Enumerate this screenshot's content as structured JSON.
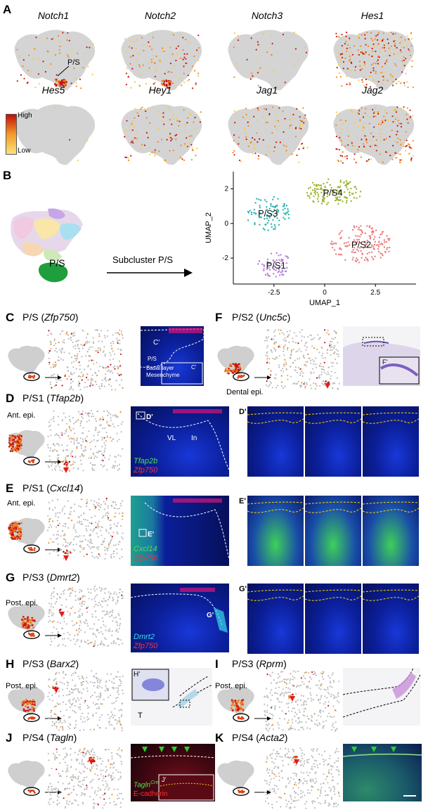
{
  "panelA": {
    "letter": "A",
    "genes": [
      "Notch1",
      "Notch2",
      "Notch3",
      "Hes1",
      "Hes5",
      "Hey1",
      "Jag1",
      "Jag2"
    ],
    "ps_label": "P/S",
    "legend_high": "High",
    "legend_low": "Low"
  },
  "panelB": {
    "letter": "B",
    "ps_label": "P/S",
    "arrow_label": "Subcluster P/S",
    "chart_data": {
      "type": "scatter",
      "xlabel": "UMAP_1",
      "ylabel": "UMAP_2",
      "xticks": [
        "-2.5",
        "0",
        "2.5"
      ],
      "yticks": [
        "2",
        "0",
        "-2"
      ],
      "xlim": [
        -4.5,
        4.5
      ],
      "ylim": [
        -3.5,
        3.0
      ],
      "clusters": [
        {
          "name": "P/S1",
          "color": "#b57ee0",
          "center": [
            -2.4,
            -2.4
          ]
        },
        {
          "name": "P/S2",
          "color": "#ef7a7a",
          "center": [
            1.8,
            -1.2
          ]
        },
        {
          "name": "P/S3",
          "color": "#2bb3b3",
          "center": [
            -2.8,
            0.6
          ]
        },
        {
          "name": "P/S4",
          "color": "#99b52d",
          "center": [
            0.4,
            1.8
          ]
        }
      ]
    }
  },
  "panelC": {
    "letter": "C",
    "title_pre": "P/S (",
    "gene": "Zfp750",
    "title_post": ")",
    "inset_label": "C'",
    "ps": "P/S",
    "basal": "Basal layer",
    "mes": "Mesenchyme"
  },
  "panelD": {
    "letter": "D",
    "title_pre": "P/S1 (",
    "gene": "Tfap2b",
    "title_post": ")",
    "ant": "Ant. epi.",
    "inset": "D'",
    "vl": "VL",
    "ln": "In",
    "stain1": "Tfap2b",
    "stain2": "Zfp750",
    "zoom": "D'"
  },
  "panelE": {
    "letter": "E",
    "title_pre": "P/S1 (",
    "gene": "Cxcl14",
    "title_post": ")",
    "ant": "Ant. epi.",
    "inset": "E'",
    "stain1": "Cxcl14",
    "stain2": "Zfp750",
    "zoom": "E'"
  },
  "panelF": {
    "letter": "F",
    "title_pre": "P/S2 (",
    "gene": "Unc5c",
    "title_post": ")",
    "dental": "Dental epi.",
    "inset": "F'"
  },
  "panelG": {
    "letter": "G",
    "title_pre": "P/S3 (",
    "gene": "Dmrt2",
    "title_post": ")",
    "post": "Post. epi.",
    "inset": "G'",
    "stain1": "Dmrt2",
    "stain2": "Zfp750",
    "zoom": "G'"
  },
  "panelH": {
    "letter": "H",
    "title_pre": "P/S3 (",
    "gene": "Barx2",
    "title_post": ")",
    "post": "Post. epi.",
    "inset": "H'",
    "t": "T"
  },
  "panelI": {
    "letter": "I",
    "title_pre": "P/S3 (",
    "gene": "Rprm",
    "title_post": ")",
    "post": "Post. epi."
  },
  "panelJ": {
    "letter": "J",
    "title_pre": "P/S4 (",
    "gene": "Tagln",
    "title_post": ")",
    "stain1": "Tagln",
    "stain1_sup": "Cre",
    "stain2": "E-cadherin",
    "inset": "J'"
  },
  "panelK": {
    "letter": "K",
    "title_pre": "P/S4 (",
    "gene": "Acta2",
    "title_post": ")"
  }
}
